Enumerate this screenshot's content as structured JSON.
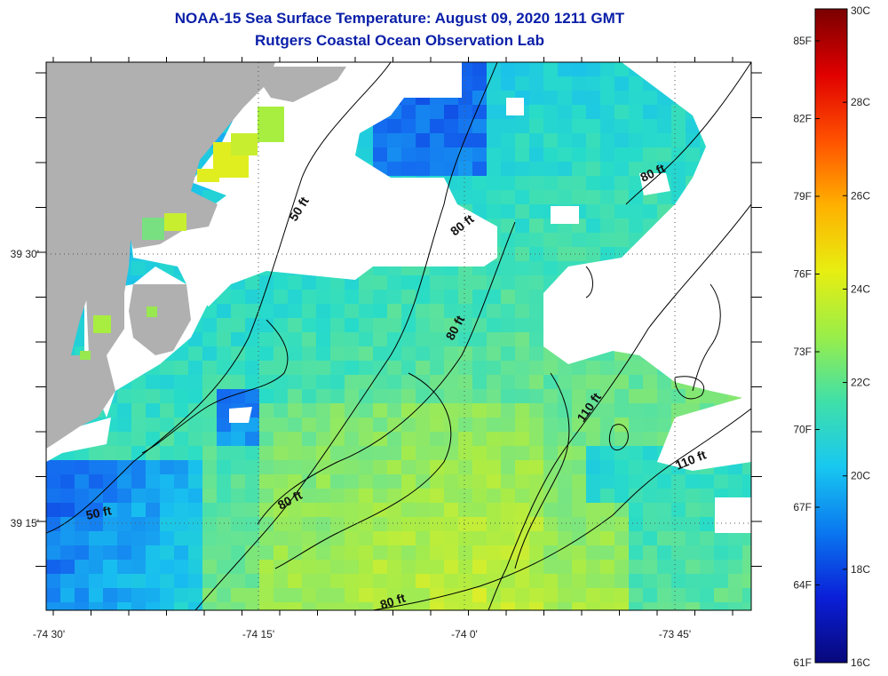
{
  "title": {
    "line1": "NOAA-15 Sea Surface Temperature:  August 09, 2020 1211 GMT",
    "line2": "Rutgers Coastal Ocean Observation Lab"
  },
  "map": {
    "x_ticks": [
      "-74 30'",
      "-74 15'",
      "-74 0'",
      "-73 45'"
    ],
    "y_ticks": [
      "39 30'",
      "39 15'"
    ],
    "contour_labels": [
      "50 ft",
      "80 ft",
      "80 ft",
      "80 ft",
      "110 ft",
      "110 ft",
      "80 ft",
      "50 ft",
      "80 ft"
    ],
    "land_color": "#b0b0b0",
    "cloud_color": "#ffffff"
  },
  "colorbar": {
    "fahrenheit_labels": [
      "85F",
      "82F",
      "79F",
      "76F",
      "73F",
      "70F",
      "67F",
      "64F",
      "61F"
    ],
    "celsius_labels": [
      "30C",
      "28C",
      "26C",
      "24C",
      "22C",
      "20C",
      "18C",
      "16C"
    ],
    "gradient_colors": [
      "#08087a",
      "#0a1fd8",
      "#0a78f0",
      "#18c8f0",
      "#40e0a8",
      "#9aee48",
      "#e8ee10",
      "#ffb000",
      "#ff5000",
      "#e00000",
      "#7a0000"
    ]
  }
}
